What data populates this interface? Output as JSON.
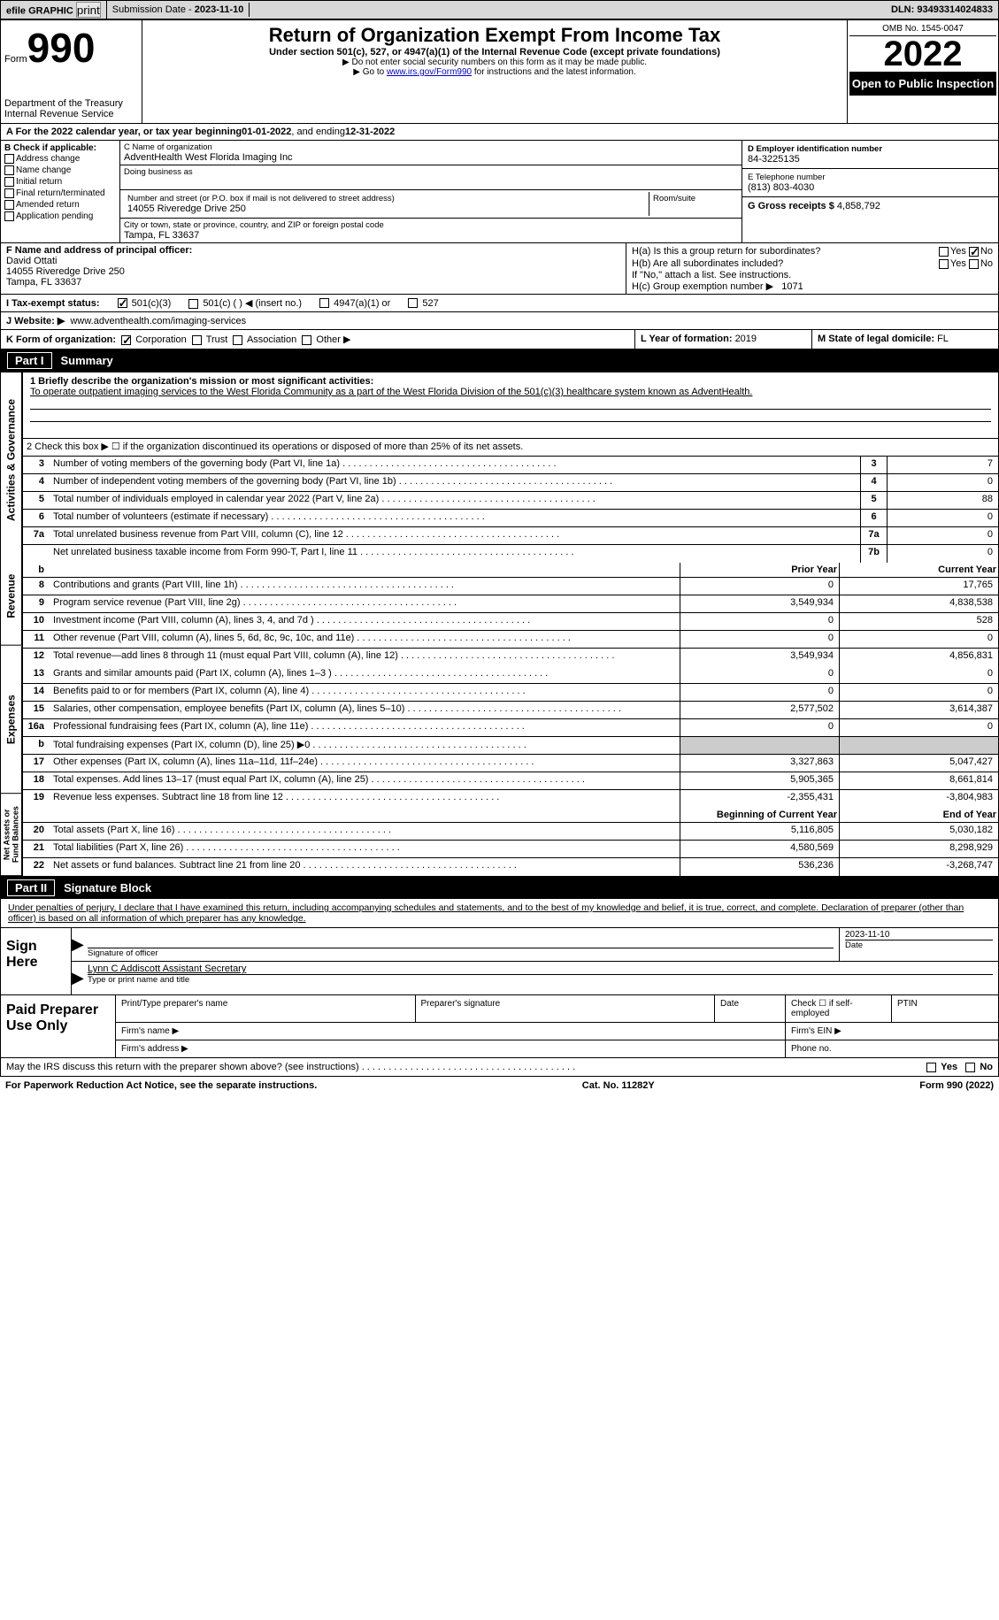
{
  "topbar": {
    "efile": "efile GRAPHIC",
    "print": "print",
    "submission_label": "Submission Date - ",
    "submission_date": "2023-11-10",
    "dln_label": "DLN: ",
    "dln": "93493314024833"
  },
  "header": {
    "form_word": "Form",
    "form_num": "990",
    "dept": "Department of the Treasury",
    "irs": "Internal Revenue Service",
    "title": "Return of Organization Exempt From Income Tax",
    "subtitle": "Under section 501(c), 527, or 4947(a)(1) of the Internal Revenue Code (except private foundations)",
    "note1": "▶ Do not enter social security numbers on this form as it may be made public.",
    "note2_pre": "▶ Go to ",
    "note2_link": "www.irs.gov/Form990",
    "note2_post": " for instructions and the latest information.",
    "omb": "OMB No. 1545-0047",
    "year": "2022",
    "open": "Open to Public Inspection"
  },
  "line_a": {
    "text_pre": "A For the 2022 calendar year, or tax year beginning ",
    "begin": "01-01-2022",
    "text_mid": " , and ending ",
    "end": "12-31-2022"
  },
  "col_b": {
    "header": "B Check if applicable:",
    "items": [
      "Address change",
      "Name change",
      "Initial return",
      "Final return/terminated",
      "Amended return",
      "Application pending"
    ]
  },
  "col_c": {
    "name_label": "C Name of organization",
    "name": "AdventHealth West Florida Imaging Inc",
    "dba_label": "Doing business as",
    "addr_label": "Number and street (or P.O. box if mail is not delivered to street address)",
    "room_label": "Room/suite",
    "addr": "14055 Riveredge Drive 250",
    "city_label": "City or town, state or province, country, and ZIP or foreign postal code",
    "city": "Tampa, FL  33637"
  },
  "col_d": {
    "ein_label": "D Employer identification number",
    "ein": "84-3225135",
    "tel_label": "E Telephone number",
    "tel": "(813) 803-4030",
    "gross_label": "G Gross receipts $ ",
    "gross": "4,858,792"
  },
  "row_f": {
    "label": "F Name and address of principal officer:",
    "name": "David Ottati",
    "addr1": "14055 Riveredge Drive 250",
    "addr2": "Tampa, FL  33637"
  },
  "row_h": {
    "ha": "H(a)  Is this a group return for subordinates?",
    "ha_yes": "Yes",
    "ha_no": "No",
    "hb": "H(b)  Are all subordinates included?",
    "hb_note": "If \"No,\" attach a list. See instructions.",
    "hc_label": "H(c)  Group exemption number ▶",
    "hc_val": "1071"
  },
  "row_i": {
    "label": "I   Tax-exempt status:",
    "c3": "501(c)(3)",
    "c_other": "501(c) (  ) ◀ (insert no.)",
    "a1": "4947(a)(1) or",
    "s527": "527"
  },
  "row_j": {
    "label": "J   Website: ▶",
    "url": "www.adventhealth.com/imaging-services"
  },
  "row_k": {
    "label": "K Form of organization:",
    "corp": "Corporation",
    "trust": "Trust",
    "assoc": "Association",
    "other": "Other ▶",
    "l_label": "L Year of formation: ",
    "l_val": "2019",
    "m_label": "M State of legal domicile: ",
    "m_val": "FL"
  },
  "part1": {
    "label": "Part I",
    "title": "Summary"
  },
  "summary": {
    "line1_label": "1   Briefly describe the organization's mission or most significant activities:",
    "mission": "To operate outpatient imaging services to the West Florida Community as a part of the West Florida Division of the 501(c)(3) healthcare system known as AdventHealth.",
    "line2": "2   Check this box ▶ ☐ if the organization discontinued its operations or disposed of more than 25% of its net assets.",
    "rows_single": [
      {
        "n": "3",
        "d": "Number of voting members of the governing body (Part VI, line 1a)",
        "bn": "3",
        "v": "7"
      },
      {
        "n": "4",
        "d": "Number of independent voting members of the governing body (Part VI, line 1b)",
        "bn": "4",
        "v": "0"
      },
      {
        "n": "5",
        "d": "Total number of individuals employed in calendar year 2022 (Part V, line 2a)",
        "bn": "5",
        "v": "88"
      },
      {
        "n": "6",
        "d": "Total number of volunteers (estimate if necessary)",
        "bn": "6",
        "v": "0"
      },
      {
        "n": "7a",
        "d": "Total unrelated business revenue from Part VIII, column (C), line 12",
        "bn": "7a",
        "v": "0"
      },
      {
        "n": "",
        "d": "Net unrelated business taxable income from Form 990-T, Part I, line 11",
        "bn": "7b",
        "v": "0"
      }
    ],
    "header_prior": "Prior Year",
    "header_current": "Current Year",
    "revenue": [
      {
        "n": "8",
        "d": "Contributions and grants (Part VIII, line 1h)",
        "p": "0",
        "c": "17,765"
      },
      {
        "n": "9",
        "d": "Program service revenue (Part VIII, line 2g)",
        "p": "3,549,934",
        "c": "4,838,538"
      },
      {
        "n": "10",
        "d": "Investment income (Part VIII, column (A), lines 3, 4, and 7d )",
        "p": "0",
        "c": "528"
      },
      {
        "n": "11",
        "d": "Other revenue (Part VIII, column (A), lines 5, 6d, 8c, 9c, 10c, and 11e)",
        "p": "0",
        "c": "0"
      },
      {
        "n": "12",
        "d": "Total revenue—add lines 8 through 11 (must equal Part VIII, column (A), line 12)",
        "p": "3,549,934",
        "c": "4,856,831"
      }
    ],
    "expenses": [
      {
        "n": "13",
        "d": "Grants and similar amounts paid (Part IX, column (A), lines 1–3 )",
        "p": "0",
        "c": "0"
      },
      {
        "n": "14",
        "d": "Benefits paid to or for members (Part IX, column (A), line 4)",
        "p": "0",
        "c": "0"
      },
      {
        "n": "15",
        "d": "Salaries, other compensation, employee benefits (Part IX, column (A), lines 5–10)",
        "p": "2,577,502",
        "c": "3,614,387"
      },
      {
        "n": "16a",
        "d": "Professional fundraising fees (Part IX, column (A), line 11e)",
        "p": "0",
        "c": "0"
      },
      {
        "n": "b",
        "d": "Total fundraising expenses (Part IX, column (D), line 25) ▶0",
        "p": "",
        "c": "",
        "shaded": true
      },
      {
        "n": "17",
        "d": "Other expenses (Part IX, column (A), lines 11a–11d, 11f–24e)",
        "p": "3,327,863",
        "c": "5,047,427"
      },
      {
        "n": "18",
        "d": "Total expenses. Add lines 13–17 (must equal Part IX, column (A), line 25)",
        "p": "5,905,365",
        "c": "8,661,814"
      },
      {
        "n": "19",
        "d": "Revenue less expenses. Subtract line 18 from line 12",
        "p": "-2,355,431",
        "c": "-3,804,983"
      }
    ],
    "header_begin": "Beginning of Current Year",
    "header_end": "End of Year",
    "netassets": [
      {
        "n": "20",
        "d": "Total assets (Part X, line 16)",
        "p": "5,116,805",
        "c": "5,030,182"
      },
      {
        "n": "21",
        "d": "Total liabilities (Part X, line 26)",
        "p": "4,580,569",
        "c": "8,298,929"
      },
      {
        "n": "22",
        "d": "Net assets or fund balances. Subtract line 21 from line 20",
        "p": "536,236",
        "c": "-3,268,747"
      }
    ]
  },
  "part2": {
    "label": "Part II",
    "title": "Signature Block"
  },
  "sig": {
    "declaration": "Under penalties of perjury, I declare that I have examined this return, including accompanying schedules and statements, and to the best of my knowledge and belief, it is true, correct, and complete. Declaration of preparer (other than officer) is based on all information of which preparer has any knowledge.",
    "sign_here": "Sign Here",
    "sig_officer": "Signature of officer",
    "date_label": "Date",
    "date": "2023-11-10",
    "name_title": "Lynn C Addiscott  Assistant Secretary",
    "type_label": "Type or print name and title"
  },
  "preparer": {
    "label": "Paid Preparer Use Only",
    "print_name": "Print/Type preparer's name",
    "sig": "Preparer's signature",
    "date": "Date",
    "check": "Check ☐ if self-employed",
    "ptin": "PTIN",
    "firm_name": "Firm's name  ▶",
    "firm_ein": "Firm's EIN ▶",
    "firm_addr": "Firm's address ▶",
    "phone": "Phone no."
  },
  "footer": {
    "discuss": "May the IRS discuss this return with the preparer shown above? (see instructions)",
    "yes": "Yes",
    "no": "No",
    "paperwork": "For Paperwork Reduction Act Notice, see the separate instructions.",
    "cat": "Cat. No. 11282Y",
    "form": "Form 990 (2022)"
  },
  "vert": {
    "gov": "Activities & Governance",
    "rev": "Revenue",
    "exp": "Expenses",
    "net": "Net Assets or Fund Balances"
  }
}
